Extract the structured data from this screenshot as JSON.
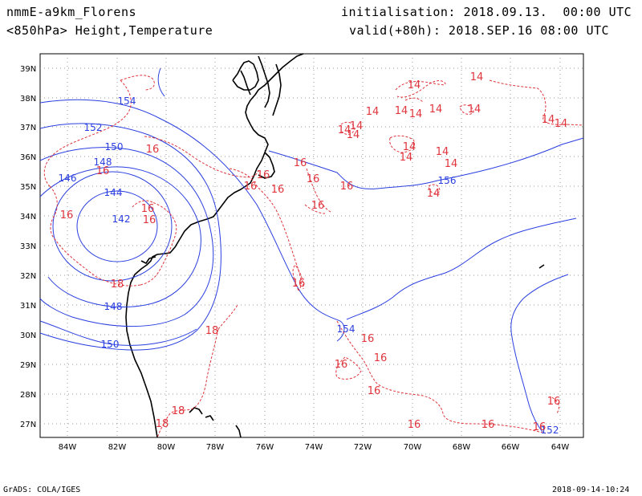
{
  "header": {
    "model": "nmmE-a9km_Florens",
    "level_fields": "<850hPa> Height,Temperature",
    "initialisation": "initialisation: 2018.09.13.  00:00 UTC",
    "valid": "valid(+80h): 2018.SEP.16 08:00 UTC"
  },
  "footer": {
    "software": "GrADS: COLA/IGES",
    "timestamp": "2018-09-14-10:24"
  },
  "axes": {
    "lat_labels": [
      "39N",
      "38N",
      "37N",
      "36N",
      "35N",
      "34N",
      "33N",
      "32N",
      "31N",
      "30N",
      "29N",
      "28N",
      "27N"
    ],
    "lon_labels": [
      "84W",
      "82W",
      "80W",
      "78W",
      "76W",
      "74W",
      "72W",
      "70W",
      "68W",
      "66W",
      "64W"
    ]
  },
  "map": {
    "lon_range": [
      -85,
      -63
    ],
    "lat_range": [
      26.5,
      39.5
    ],
    "grid": "dotted",
    "colors": {
      "height": "#2a3fe0",
      "temperature": "#e0343c",
      "coast": "#000000"
    }
  },
  "height_labels": [
    "154",
    "152",
    "150",
    "148",
    "146",
    "144",
    "142",
    "148",
    "150",
    "154",
    "156",
    "152"
  ],
  "temperature_labels": [
    "16",
    "16",
    "16",
    "16",
    "16",
    "16",
    "16",
    "16",
    "18",
    "18",
    "16",
    "16",
    "16",
    "16",
    "16",
    "16",
    "16",
    "16",
    "16",
    "16",
    "18",
    "18",
    "14",
    "14",
    "14",
    "14",
    "14",
    "14",
    "14",
    "14",
    "14",
    "14",
    "14",
    "14",
    "14",
    "14",
    "14",
    "14",
    "14",
    "16"
  ]
}
